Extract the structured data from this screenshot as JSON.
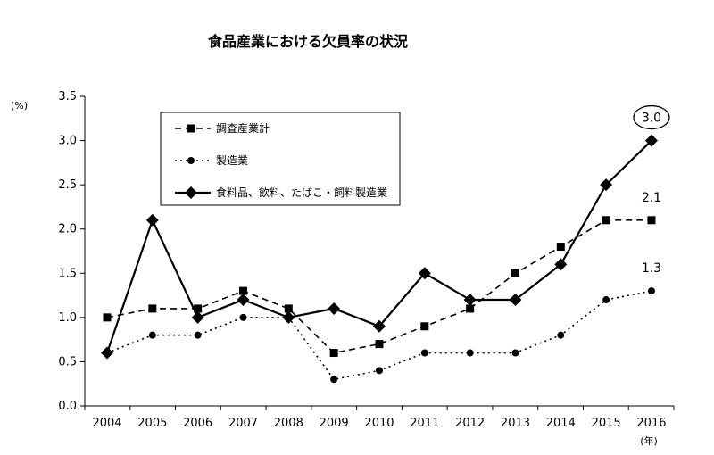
{
  "chart_data": {
    "type": "line",
    "title": "食品産業における欠員率の状況",
    "ylabel": "(%)",
    "xlabel": "(年)",
    "ylim": [
      0,
      3.5
    ],
    "yticks": [
      "0.0",
      "0.5",
      "1.0",
      "1.5",
      "2.0",
      "2.5",
      "3.0",
      "3.5"
    ],
    "ytick_values": [
      0,
      0.5,
      1.0,
      1.5,
      2.0,
      2.5,
      3.0,
      3.5
    ],
    "x": [
      "2004",
      "2005",
      "2006",
      "2007",
      "2008",
      "2009",
      "2010",
      "2011",
      "2012",
      "2013",
      "2014",
      "2015",
      "2016"
    ],
    "grid": false,
    "legend_position": "top-left",
    "series": [
      {
        "name": "調査産業計",
        "line_style": "dashed",
        "marker": "square",
        "values": [
          1.0,
          1.1,
          1.1,
          1.3,
          1.1,
          0.6,
          0.7,
          0.9,
          1.1,
          1.5,
          1.8,
          2.1,
          2.1
        ]
      },
      {
        "name": "製造業",
        "line_style": "dotted",
        "marker": "circle",
        "values": [
          0.6,
          0.8,
          0.8,
          1.0,
          1.0,
          0.3,
          0.4,
          0.6,
          0.6,
          0.6,
          0.8,
          1.2,
          1.3
        ]
      },
      {
        "name": "食料品、飲料、たばこ・飼料製造業",
        "line_style": "solid",
        "marker": "diamond",
        "values": [
          0.6,
          2.1,
          1.0,
          1.2,
          1.0,
          1.1,
          0.9,
          1.5,
          1.2,
          1.2,
          1.6,
          2.5,
          3.0
        ]
      }
    ],
    "annotations": [
      {
        "series": 2,
        "index": 12,
        "text": "3.0",
        "circled": true
      },
      {
        "series": 0,
        "index": 12,
        "text": "2.1",
        "circled": false
      },
      {
        "series": 1,
        "index": 12,
        "text": "1.3",
        "circled": false
      }
    ]
  }
}
